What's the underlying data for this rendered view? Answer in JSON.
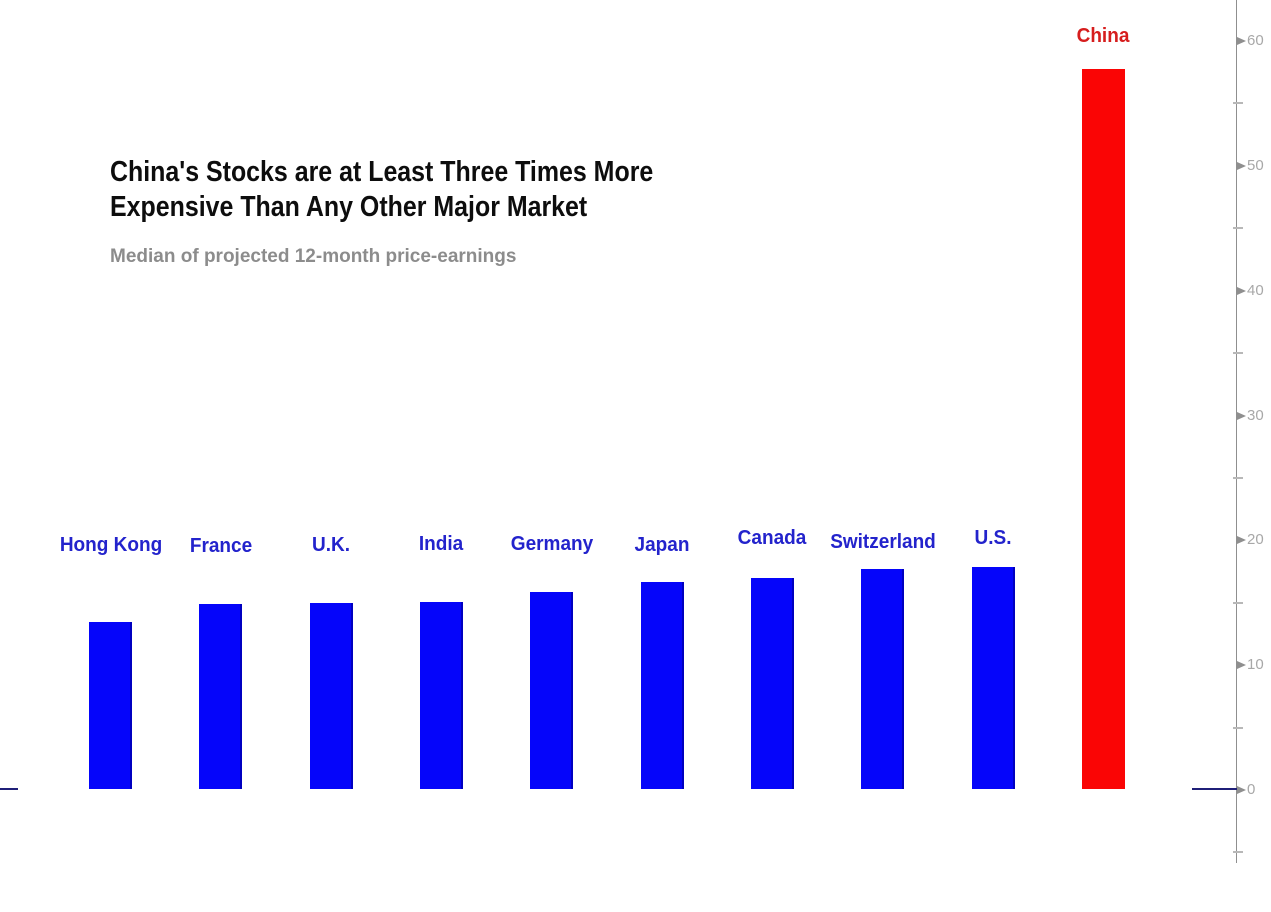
{
  "header": {
    "title_lines": [
      "China's Stocks are at Least Three Times More",
      "Expensive Than Any Other Major Market"
    ],
    "subtitle": "Median of projected 12-month price-earnings"
  },
  "chart_data": {
    "type": "bar",
    "title": "China's Stocks are at Least Three Times More Expensive Than Any Other Major Market",
    "subtitle": "Median of projected 12-month price-earnings",
    "categories": [
      "Hong Kong",
      "France",
      "U.K.",
      "India",
      "Germany",
      "Japan",
      "Canada",
      "Switzerland",
      "U.S.",
      "China"
    ],
    "values": [
      13.4,
      14.8,
      14.9,
      15.0,
      15.8,
      16.6,
      16.9,
      17.6,
      17.8,
      57.7
    ],
    "highlight_category": "China",
    "xlabel": "",
    "ylabel": "",
    "ylim": [
      -5,
      62
    ],
    "yticks_major": [
      0,
      10,
      20,
      30,
      40,
      50,
      60
    ],
    "yticks_minor": [
      -5,
      5,
      15,
      25,
      35,
      45,
      55
    ],
    "axis_side": "right",
    "grid": false,
    "legend": "none",
    "colors": {
      "bar": "#0505fa",
      "bar_edge": "#0000c0",
      "highlight_bar": "#fa0505",
      "label": "#2323cc",
      "highlight_label": "#d61d1d",
      "axis": "#8f8f8f",
      "tick_label": "#a8a8a8",
      "zero_line": "#1f1f78",
      "title": "#0d0d0d",
      "subtitle": "#8c8c8c"
    }
  }
}
